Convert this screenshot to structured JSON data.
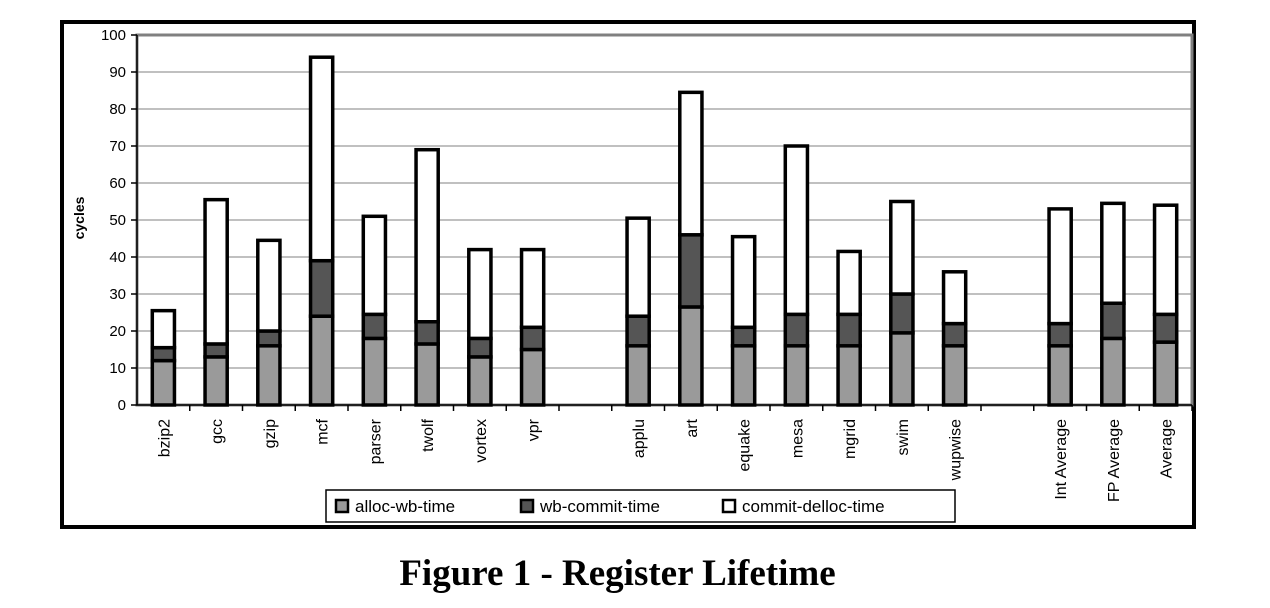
{
  "caption": "Figure 1 - Register Lifetime",
  "chart_data": {
    "type": "bar",
    "stacked": true,
    "title": "",
    "xlabel": "",
    "ylabel": "cycles",
    "ylim": [
      0,
      100
    ],
    "yticks": [
      0,
      10,
      20,
      30,
      40,
      50,
      60,
      70,
      80,
      90,
      100
    ],
    "grid": true,
    "legend_position": "bottom",
    "slots": [
      "bzip2",
      "gcc",
      "gzip",
      "mcf",
      "parser",
      "twolf",
      "vortex",
      "vpr",
      "",
      "applu",
      "art",
      "equake",
      "mesa",
      "mgrid",
      "swim",
      "wupwise",
      "",
      "Int Average",
      "FP Average",
      "Average"
    ],
    "categories": [
      "bzip2",
      "gcc",
      "gzip",
      "mcf",
      "parser",
      "twolf",
      "vortex",
      "vpr",
      "applu",
      "art",
      "equake",
      "mesa",
      "mgrid",
      "swim",
      "wupwise",
      "Int Average",
      "FP Average",
      "Average"
    ],
    "series": [
      {
        "name": "alloc-wb-time",
        "color": "#9a9a9a",
        "values": [
          12,
          13,
          16,
          24,
          18,
          16.5,
          13,
          15,
          16,
          26.5,
          16,
          16,
          16,
          19.5,
          16,
          16,
          18,
          17
        ]
      },
      {
        "name": "wb-commit-time",
        "color": "#555555",
        "values": [
          3.5,
          3.5,
          4,
          15,
          6.5,
          6,
          5,
          6,
          8,
          19.5,
          5,
          8.5,
          8.5,
          10.5,
          6,
          6,
          9.5,
          7.5
        ]
      },
      {
        "name": "commit-delloc-time",
        "color": "#ffffff",
        "values": [
          10,
          39,
          24.5,
          55,
          26.5,
          46.5,
          24,
          21,
          26.5,
          38.5,
          24.5,
          45.5,
          17,
          25,
          14,
          31,
          27,
          29.5
        ]
      }
    ]
  }
}
